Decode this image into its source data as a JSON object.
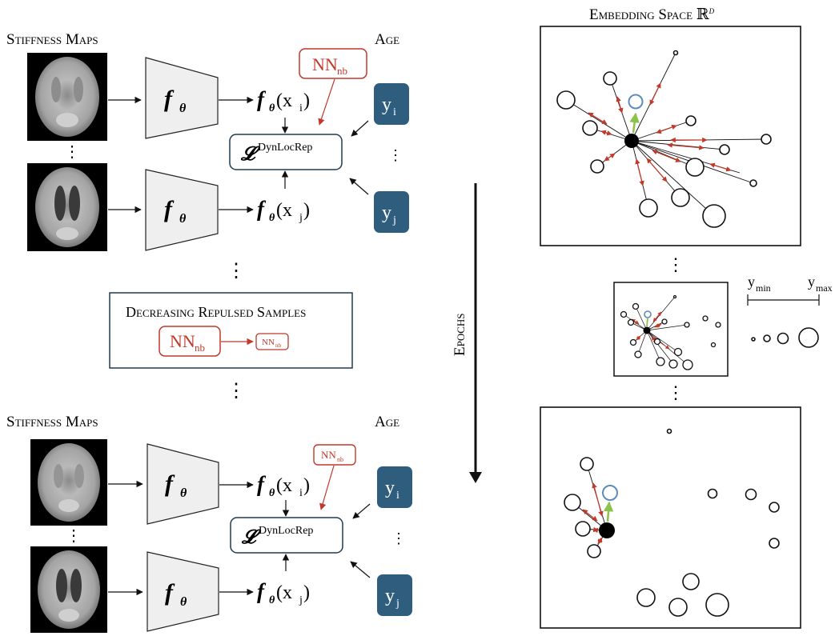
{
  "left_top": {
    "stiffness_label": "Stiffness Maps",
    "age_label": "Age",
    "nn_label": "NN",
    "nn_sub": "nb",
    "encoder_label": "f",
    "encoder_sub": "θ",
    "out_i": "f",
    "out_i_arg": "(x",
    "out_i_idx": "i",
    "out_j_arg": "(x",
    "out_j_idx": "j",
    "loss_symbol": "𝓛",
    "loss_sup": "DynLocRep",
    "y_i": "y",
    "y_i_idx": "i",
    "y_j": "y",
    "y_j_idx": "j",
    "vdots": "⋮"
  },
  "decreasing": {
    "title": "Decreasing Repulsed Samples",
    "nn_large": "NN",
    "nn_large_sub": "nb",
    "nn_small": "NN",
    "nn_small_sub": "nb"
  },
  "left_bottom": {
    "stiffness_label": "Stiffness Maps",
    "age_label": "Age",
    "nn_label": "NN",
    "nn_sub": "nb"
  },
  "epochs_label": "Epochs",
  "embedding": {
    "title": "Embedding Space ℝ",
    "title_sup": "d"
  },
  "legend": {
    "y_min": "y",
    "y_min_sub": "min",
    "y_max": "y",
    "y_max_sub": "max"
  },
  "colors": {
    "red": "#c0392b",
    "blue_box": "#2f5d7e",
    "green": "#8bc34a",
    "query_ring": "#5b8db8",
    "encoder_fill": "#efefef"
  }
}
